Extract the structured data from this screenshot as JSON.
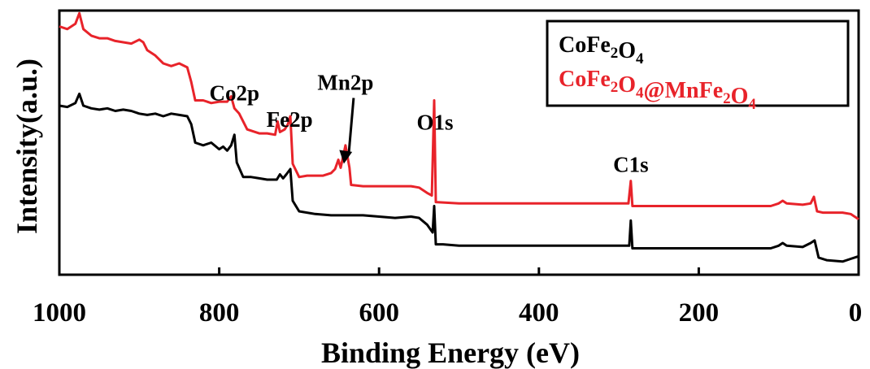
{
  "chart_data": {
    "type": "line",
    "xlabel": "Binding Energy  (eV)",
    "ylabel": "Intensity(a.u.)",
    "xlim": [
      1000,
      0
    ],
    "x_reversed": true,
    "y_ticks_shown": false,
    "ylim": [
      0,
      100
    ],
    "x_ticks": [
      1000,
      800,
      600,
      400,
      200,
      0
    ],
    "x_tick_labels": [
      "1000",
      "800",
      "600",
      "400",
      "200",
      "0"
    ],
    "grid": false,
    "legend_position": "top-right",
    "legend": [
      {
        "parts": [
          [
            "CoFe",
            ""
          ],
          [
            "2",
            "sub"
          ],
          [
            "O",
            ""
          ],
          [
            "4",
            "sub"
          ]
        ],
        "color": "#000000"
      },
      {
        "parts": [
          [
            "CoFe",
            ""
          ],
          [
            "2",
            "sub"
          ],
          [
            "O",
            ""
          ],
          [
            "4",
            "sub"
          ],
          [
            "@MnFe",
            ""
          ],
          [
            "2",
            "sub"
          ],
          [
            "O",
            ""
          ],
          [
            "4",
            "sub"
          ]
        ],
        "color": "#e8232a"
      }
    ],
    "annotations": [
      {
        "text": "Co2p",
        "x": 781,
        "y": 66
      },
      {
        "text": "Fe2p",
        "x": 712,
        "y": 56
      },
      {
        "text": "Mn2p",
        "x": 642,
        "y": 70,
        "arrow_to": [
          642,
          42
        ]
      },
      {
        "text": "O1s",
        "x": 530,
        "y": 55
      },
      {
        "text": "C1s",
        "x": 285,
        "y": 39
      }
    ],
    "series": [
      {
        "color": "#000000",
        "points": [
          [
            1000,
            64
          ],
          [
            990,
            63.5
          ],
          [
            980,
            65
          ],
          [
            975,
            68.5
          ],
          [
            970,
            64
          ],
          [
            960,
            63
          ],
          [
            950,
            62.5
          ],
          [
            940,
            63
          ],
          [
            930,
            62
          ],
          [
            920,
            62.5
          ],
          [
            910,
            62
          ],
          [
            900,
            61
          ],
          [
            890,
            60.5
          ],
          [
            880,
            61
          ],
          [
            870,
            60
          ],
          [
            860,
            61
          ],
          [
            850,
            60.5
          ],
          [
            840,
            60
          ],
          [
            835,
            57
          ],
          [
            830,
            50
          ],
          [
            820,
            49
          ],
          [
            810,
            50
          ],
          [
            800,
            47.5
          ],
          [
            795,
            48.5
          ],
          [
            790,
            47
          ],
          [
            785,
            49
          ],
          [
            781,
            53
          ],
          [
            778,
            42.5
          ],
          [
            770,
            37
          ],
          [
            760,
            37
          ],
          [
            750,
            36.5
          ],
          [
            740,
            36
          ],
          [
            728,
            36
          ],
          [
            724,
            38
          ],
          [
            720,
            36.5
          ],
          [
            716,
            38
          ],
          [
            711,
            40
          ],
          [
            708,
            28
          ],
          [
            700,
            24
          ],
          [
            680,
            23
          ],
          [
            660,
            22.5
          ],
          [
            640,
            22.5
          ],
          [
            620,
            22.5
          ],
          [
            600,
            22
          ],
          [
            580,
            21.5
          ],
          [
            560,
            22
          ],
          [
            550,
            21.5
          ],
          [
            540,
            19
          ],
          [
            533,
            16
          ],
          [
            531,
            26
          ],
          [
            529,
            11.5
          ],
          [
            520,
            11.5
          ],
          [
            500,
            11
          ],
          [
            450,
            11
          ],
          [
            400,
            11
          ],
          [
            350,
            11
          ],
          [
            300,
            11
          ],
          [
            287,
            11
          ],
          [
            285,
            20.5
          ],
          [
            283,
            10
          ],
          [
            250,
            10
          ],
          [
            200,
            10
          ],
          [
            150,
            10
          ],
          [
            110,
            10
          ],
          [
            100,
            11
          ],
          [
            95,
            12
          ],
          [
            90,
            11
          ],
          [
            70,
            10.5
          ],
          [
            60,
            12
          ],
          [
            55,
            13
          ],
          [
            50,
            6.5
          ],
          [
            40,
            5.5
          ],
          [
            20,
            5
          ],
          [
            10,
            6
          ],
          [
            0,
            7
          ]
        ]
      },
      {
        "color": "#e8232a",
        "points": [
          [
            1000,
            94
          ],
          [
            990,
            93
          ],
          [
            980,
            95
          ],
          [
            975,
            99
          ],
          [
            970,
            93
          ],
          [
            960,
            90.5
          ],
          [
            950,
            89.5
          ],
          [
            940,
            89.5
          ],
          [
            930,
            88.5
          ],
          [
            920,
            88
          ],
          [
            910,
            87.5
          ],
          [
            900,
            89
          ],
          [
            895,
            88
          ],
          [
            890,
            85
          ],
          [
            880,
            83
          ],
          [
            870,
            80
          ],
          [
            860,
            79
          ],
          [
            850,
            80
          ],
          [
            840,
            78.5
          ],
          [
            835,
            73
          ],
          [
            830,
            66
          ],
          [
            820,
            66
          ],
          [
            810,
            65
          ],
          [
            800,
            65.5
          ],
          [
            790,
            65.5
          ],
          [
            785,
            67.5
          ],
          [
            781,
            63
          ],
          [
            775,
            61
          ],
          [
            765,
            55
          ],
          [
            750,
            53.5
          ],
          [
            740,
            53.5
          ],
          [
            730,
            53
          ],
          [
            727,
            58
          ],
          [
            724,
            54
          ],
          [
            718,
            55
          ],
          [
            714,
            57
          ],
          [
            711,
            60
          ],
          [
            708,
            42
          ],
          [
            700,
            37
          ],
          [
            690,
            37.5
          ],
          [
            680,
            37.5
          ],
          [
            670,
            37.5
          ],
          [
            660,
            38.5
          ],
          [
            655,
            40
          ],
          [
            651,
            43.5
          ],
          [
            648,
            40.5
          ],
          [
            642,
            49
          ],
          [
            637,
            40.5
          ],
          [
            635,
            34
          ],
          [
            620,
            33.5
          ],
          [
            600,
            33.5
          ],
          [
            580,
            33.5
          ],
          [
            560,
            33.5
          ],
          [
            550,
            33
          ],
          [
            540,
            31
          ],
          [
            534,
            30
          ],
          [
            531,
            66
          ],
          [
            529,
            27.5
          ],
          [
            500,
            27
          ],
          [
            450,
            27
          ],
          [
            400,
            27
          ],
          [
            350,
            27
          ],
          [
            300,
            27
          ],
          [
            288,
            27
          ],
          [
            285,
            35.5
          ],
          [
            283,
            26
          ],
          [
            250,
            26
          ],
          [
            200,
            26
          ],
          [
            150,
            26
          ],
          [
            110,
            26
          ],
          [
            100,
            27
          ],
          [
            95,
            28
          ],
          [
            90,
            27
          ],
          [
            70,
            26.5
          ],
          [
            60,
            27
          ],
          [
            56,
            29.5
          ],
          [
            52,
            24
          ],
          [
            45,
            23.5
          ],
          [
            20,
            23.5
          ],
          [
            10,
            23
          ],
          [
            0,
            21
          ]
        ]
      }
    ]
  }
}
